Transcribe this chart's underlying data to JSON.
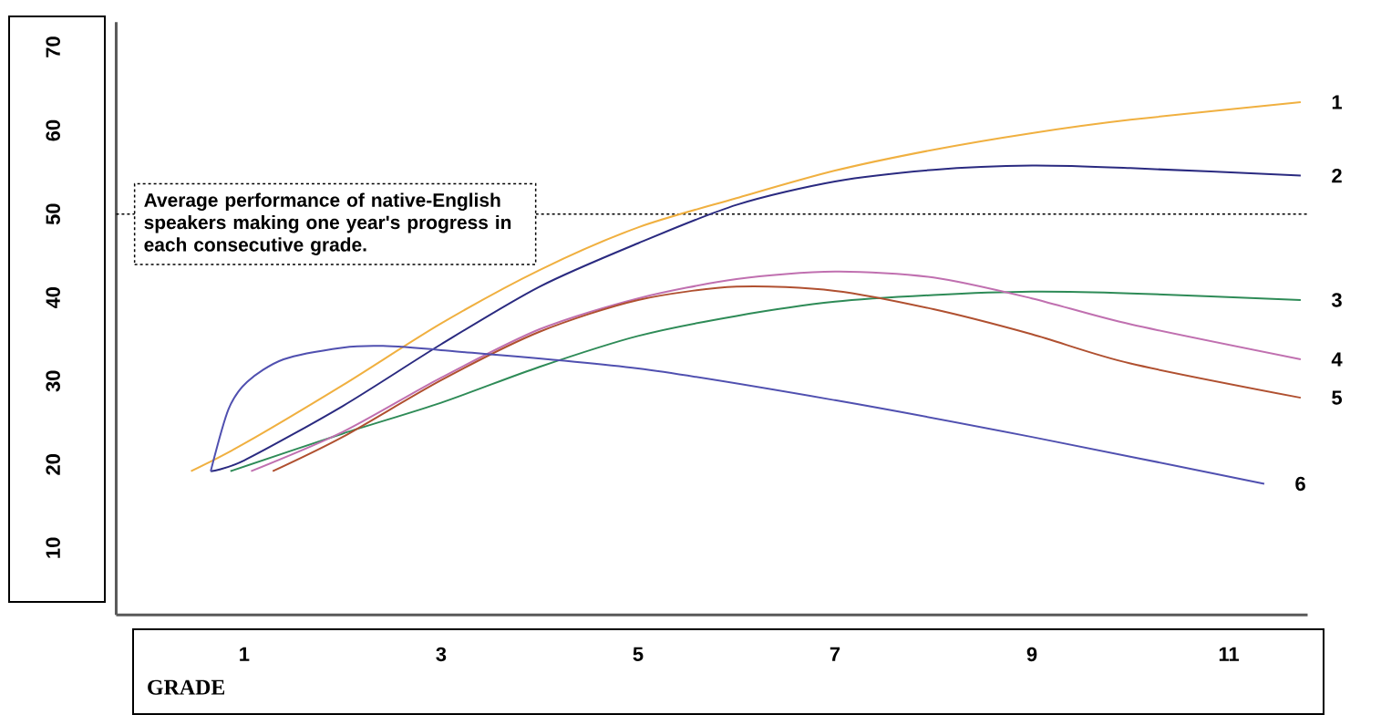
{
  "chart_data": {
    "type": "line",
    "xlabel": "GRADE",
    "xlim": [
      -0.3,
      11.8
    ],
    "ylim": [
      2,
      73
    ],
    "xticks": [
      1,
      3,
      5,
      7,
      9,
      11
    ],
    "yticks": [
      10,
      20,
      30,
      40,
      50,
      60,
      70
    ],
    "legend": false,
    "grid": false,
    "marker": "none",
    "line_style": "solid",
    "ref_lines": [
      {
        "axis": "y",
        "value": 50,
        "label": "Average performance of native-English speakers making one year's progress in each consecutive grade.",
        "line_style": "dashed",
        "color": "#000000"
      }
    ],
    "series": [
      {
        "name": "1",
        "color": "#f0b040",
        "x": [
          0.46,
          1,
          2,
          3,
          4,
          5,
          6,
          7,
          8,
          9,
          10,
          11.73
        ],
        "values": [
          19.2,
          22.5,
          29.5,
          36.9,
          43.3,
          48.4,
          51.9,
          55.2,
          57.7,
          59.7,
          61.3,
          63.4
        ]
      },
      {
        "name": "2",
        "color": "#2a2a80",
        "x": [
          0.66,
          1,
          2,
          3,
          4,
          5,
          6,
          7,
          8,
          9,
          10,
          11.73
        ],
        "values": [
          19.2,
          20.5,
          27.0,
          34.4,
          41.3,
          46.5,
          51.1,
          53.9,
          55.3,
          55.8,
          55.5,
          54.6
        ]
      },
      {
        "name": "3",
        "color": "#2e8b57",
        "x": [
          0.86,
          2,
          3,
          4,
          5,
          6,
          7,
          8,
          9,
          10,
          11.73
        ],
        "values": [
          19.2,
          23.7,
          27.4,
          31.7,
          35.4,
          37.8,
          39.5,
          40.3,
          40.7,
          40.5,
          39.7
        ]
      },
      {
        "name": "4",
        "color": "#c070b0",
        "x": [
          1.07,
          2,
          3,
          4,
          5,
          6,
          7,
          8,
          9,
          10,
          11.73
        ],
        "values": [
          19.2,
          23.9,
          30.4,
          36.2,
          39.9,
          42.2,
          43.1,
          42.4,
          39.9,
          36.8,
          32.6
        ]
      },
      {
        "name": "5",
        "color": "#b05030",
        "x": [
          1.29,
          2,
          3,
          4,
          5,
          6,
          7,
          8,
          9,
          10,
          11.73
        ],
        "values": [
          19.2,
          23.3,
          30.1,
          35.9,
          39.7,
          41.3,
          40.8,
          38.6,
          35.6,
          32.1,
          28.0
        ]
      },
      {
        "name": "6",
        "color": "#5050b0",
        "x": [
          0.66,
          0.84,
          1.03,
          1.4,
          2,
          2.41,
          3,
          5,
          7,
          9,
          11.36
        ],
        "values": [
          19.2,
          26.6,
          29.9,
          32.6,
          34.0,
          34.2,
          33.7,
          31.5,
          27.7,
          23.3,
          17.7
        ]
      }
    ]
  }
}
